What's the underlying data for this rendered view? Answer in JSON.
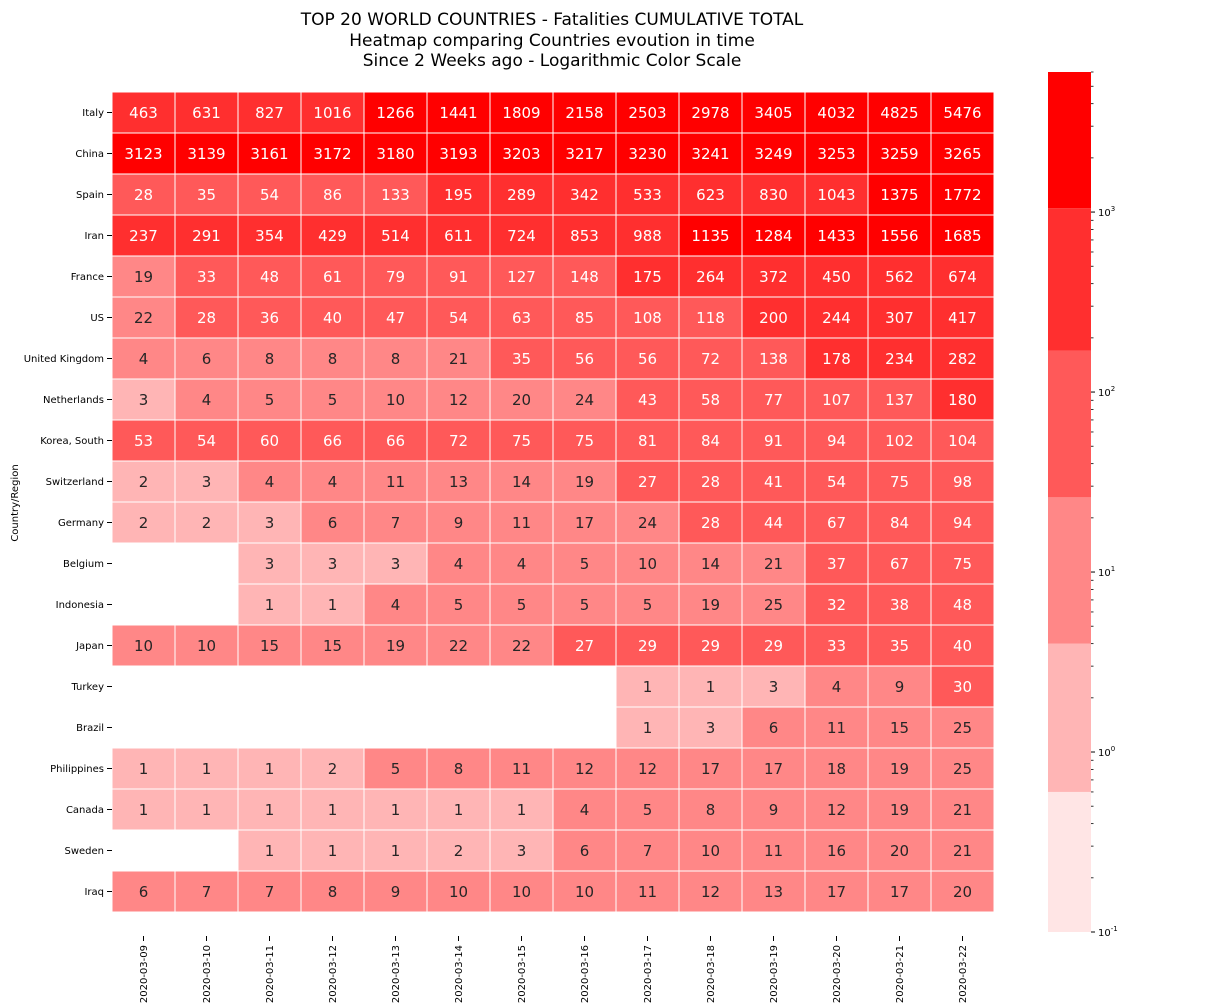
{
  "chart_data": {
    "type": "heatmap",
    "title_lines": [
      "TOP 20 WORLD COUNTRIES - Fatalities CUMULATIVE TOTAL",
      "Heatmap comparing Countries evoution in time",
      "Since 2 Weeks ago - Logarithmic Color Scale"
    ],
    "ylabel": "Country/Region",
    "xlabel": "",
    "x": [
      "2020-03-09",
      "2020-03-10",
      "2020-03-11",
      "2020-03-12",
      "2020-03-13",
      "2020-03-14",
      "2020-03-15",
      "2020-03-16",
      "2020-03-17",
      "2020-03-18",
      "2020-03-19",
      "2020-03-20",
      "2020-03-21",
      "2020-03-22"
    ],
    "y": [
      "Italy",
      "China",
      "Spain",
      "Iran",
      "France",
      "US",
      "United Kingdom",
      "Netherlands",
      "Korea, South",
      "Switzerland",
      "Germany",
      "Belgium",
      "Indonesia",
      "Japan",
      "Turkey",
      "Brazil",
      "Philippines",
      "Canada",
      "Sweden",
      "Iraq"
    ],
    "values": [
      [
        463,
        631,
        827,
        1016,
        1266,
        1441,
        1809,
        2158,
        2503,
        2978,
        3405,
        4032,
        4825,
        5476
      ],
      [
        3123,
        3139,
        3161,
        3172,
        3180,
        3193,
        3203,
        3217,
        3230,
        3241,
        3249,
        3253,
        3259,
        3265
      ],
      [
        28,
        35,
        54,
        86,
        133,
        195,
        289,
        342,
        533,
        623,
        830,
        1043,
        1375,
        1772
      ],
      [
        237,
        291,
        354,
        429,
        514,
        611,
        724,
        853,
        988,
        1135,
        1284,
        1433,
        1556,
        1685
      ],
      [
        19,
        33,
        48,
        61,
        79,
        91,
        127,
        148,
        175,
        264,
        372,
        450,
        562,
        674
      ],
      [
        22,
        28,
        36,
        40,
        47,
        54,
        63,
        85,
        108,
        118,
        200,
        244,
        307,
        417
      ],
      [
        4,
        6,
        8,
        8,
        8,
        21,
        35,
        56,
        56,
        72,
        138,
        178,
        234,
        282
      ],
      [
        3,
        4,
        5,
        5,
        10,
        12,
        20,
        24,
        43,
        58,
        77,
        107,
        137,
        180
      ],
      [
        53,
        54,
        60,
        66,
        66,
        72,
        75,
        75,
        81,
        84,
        91,
        94,
        102,
        104
      ],
      [
        2,
        3,
        4,
        4,
        11,
        13,
        14,
        19,
        27,
        28,
        41,
        54,
        75,
        98
      ],
      [
        2,
        2,
        3,
        6,
        7,
        9,
        11,
        17,
        24,
        28,
        44,
        67,
        84,
        94
      ],
      [
        null,
        null,
        3,
        3,
        3,
        4,
        4,
        5,
        10,
        14,
        21,
        37,
        67,
        75
      ],
      [
        null,
        null,
        1,
        1,
        4,
        5,
        5,
        5,
        5,
        19,
        25,
        32,
        38,
        48
      ],
      [
        10,
        10,
        15,
        15,
        19,
        22,
        22,
        27,
        29,
        29,
        29,
        33,
        35,
        40
      ],
      [
        null,
        null,
        null,
        null,
        null,
        null,
        null,
        null,
        1,
        1,
        3,
        4,
        9,
        30
      ],
      [
        null,
        null,
        null,
        null,
        null,
        null,
        null,
        null,
        1,
        3,
        6,
        11,
        15,
        25
      ],
      [
        1,
        1,
        1,
        2,
        5,
        8,
        11,
        12,
        12,
        17,
        17,
        18,
        19,
        25
      ],
      [
        1,
        1,
        1,
        1,
        1,
        1,
        1,
        4,
        5,
        8,
        9,
        12,
        19,
        21
      ],
      [
        null,
        null,
        1,
        1,
        1,
        2,
        3,
        6,
        7,
        10,
        11,
        16,
        20,
        21
      ],
      [
        6,
        7,
        7,
        8,
        9,
        10,
        10,
        10,
        11,
        12,
        13,
        17,
        17,
        20
      ]
    ],
    "color_scale": "log",
    "colorbar": {
      "range": [
        0.1,
        6000
      ],
      "tick_labels": [
        "10^-1",
        "10^0",
        "10^1",
        "10^2",
        "10^3"
      ],
      "tick_values": [
        0.1,
        1,
        10,
        100,
        1000
      ],
      "color_bands": [
        {
          "min": 0.1,
          "max": 0.6,
          "color": "#ffe5e5"
        },
        {
          "min": 0.6,
          "max": 4,
          "color": "#ffb5b5"
        },
        {
          "min": 4,
          "max": 26,
          "color": "#ff8787"
        },
        {
          "min": 26,
          "max": 170,
          "color": "#ff5959"
        },
        {
          "min": 170,
          "max": 1050,
          "color": "#ff2f2f"
        },
        {
          "min": 1050,
          "max": 6000,
          "color": "#ff0000"
        }
      ]
    },
    "text_colors": {
      "dark": "#262626",
      "light": "#ffffff"
    },
    "grid_line_color": "#ffffff"
  }
}
